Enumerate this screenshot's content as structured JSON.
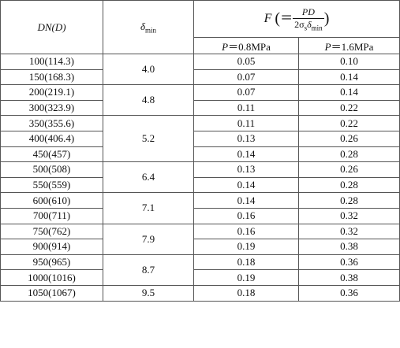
{
  "table": {
    "header": {
      "dn": "DN(D)",
      "delta": {
        "symbol": "δ",
        "subscript": "min"
      },
      "formula": {
        "lhs": "F",
        "open": "(",
        "eq": "＝",
        "numerator": "PD",
        "denominator": {
          "coef": "2σ",
          "sigma_sub": "s",
          "delta": "δ",
          "delta_sub": "min"
        },
        "close": ")"
      },
      "pressures": [
        {
          "symbol": "P",
          "text": "＝0.8MPa"
        },
        {
          "symbol": "P",
          "text": "＝1.6MPa"
        }
      ]
    },
    "groups": [
      {
        "delta": "4.0",
        "rows": [
          [
            "100(114.3)",
            "0.05",
            "0.10"
          ],
          [
            "150(168.3)",
            "0.07",
            "0.14"
          ]
        ]
      },
      {
        "delta": "4.8",
        "rows": [
          [
            "200(219.1)",
            "0.07",
            "0.14"
          ],
          [
            "300(323.9)",
            "0.11",
            "0.22"
          ]
        ]
      },
      {
        "delta": "5.2",
        "rows": [
          [
            "350(355.6)",
            "0.11",
            "0.22"
          ],
          [
            "400(406.4)",
            "0.13",
            "0.26"
          ],
          [
            "450(457)",
            "0.14",
            "0.28"
          ]
        ]
      },
      {
        "delta": "6.4",
        "rows": [
          [
            "500(508)",
            "0.13",
            "0.26"
          ],
          [
            "550(559)",
            "0.14",
            "0.28"
          ]
        ]
      },
      {
        "delta": "7.1",
        "rows": [
          [
            "600(610)",
            "0.14",
            "0.28"
          ],
          [
            "700(711)",
            "0.16",
            "0.32"
          ]
        ]
      },
      {
        "delta": "7.9",
        "rows": [
          [
            "750(762)",
            "0.16",
            "0.32"
          ],
          [
            "900(914)",
            "0.19",
            "0.38"
          ]
        ]
      },
      {
        "delta": "8.7",
        "rows": [
          [
            "950(965)",
            "0.18",
            "0.36"
          ],
          [
            "1000(1016)",
            "0.19",
            "0.38"
          ]
        ]
      },
      {
        "delta": "9.5",
        "rows": [
          [
            "1050(1067)",
            "0.18",
            "0.36"
          ]
        ]
      }
    ]
  }
}
